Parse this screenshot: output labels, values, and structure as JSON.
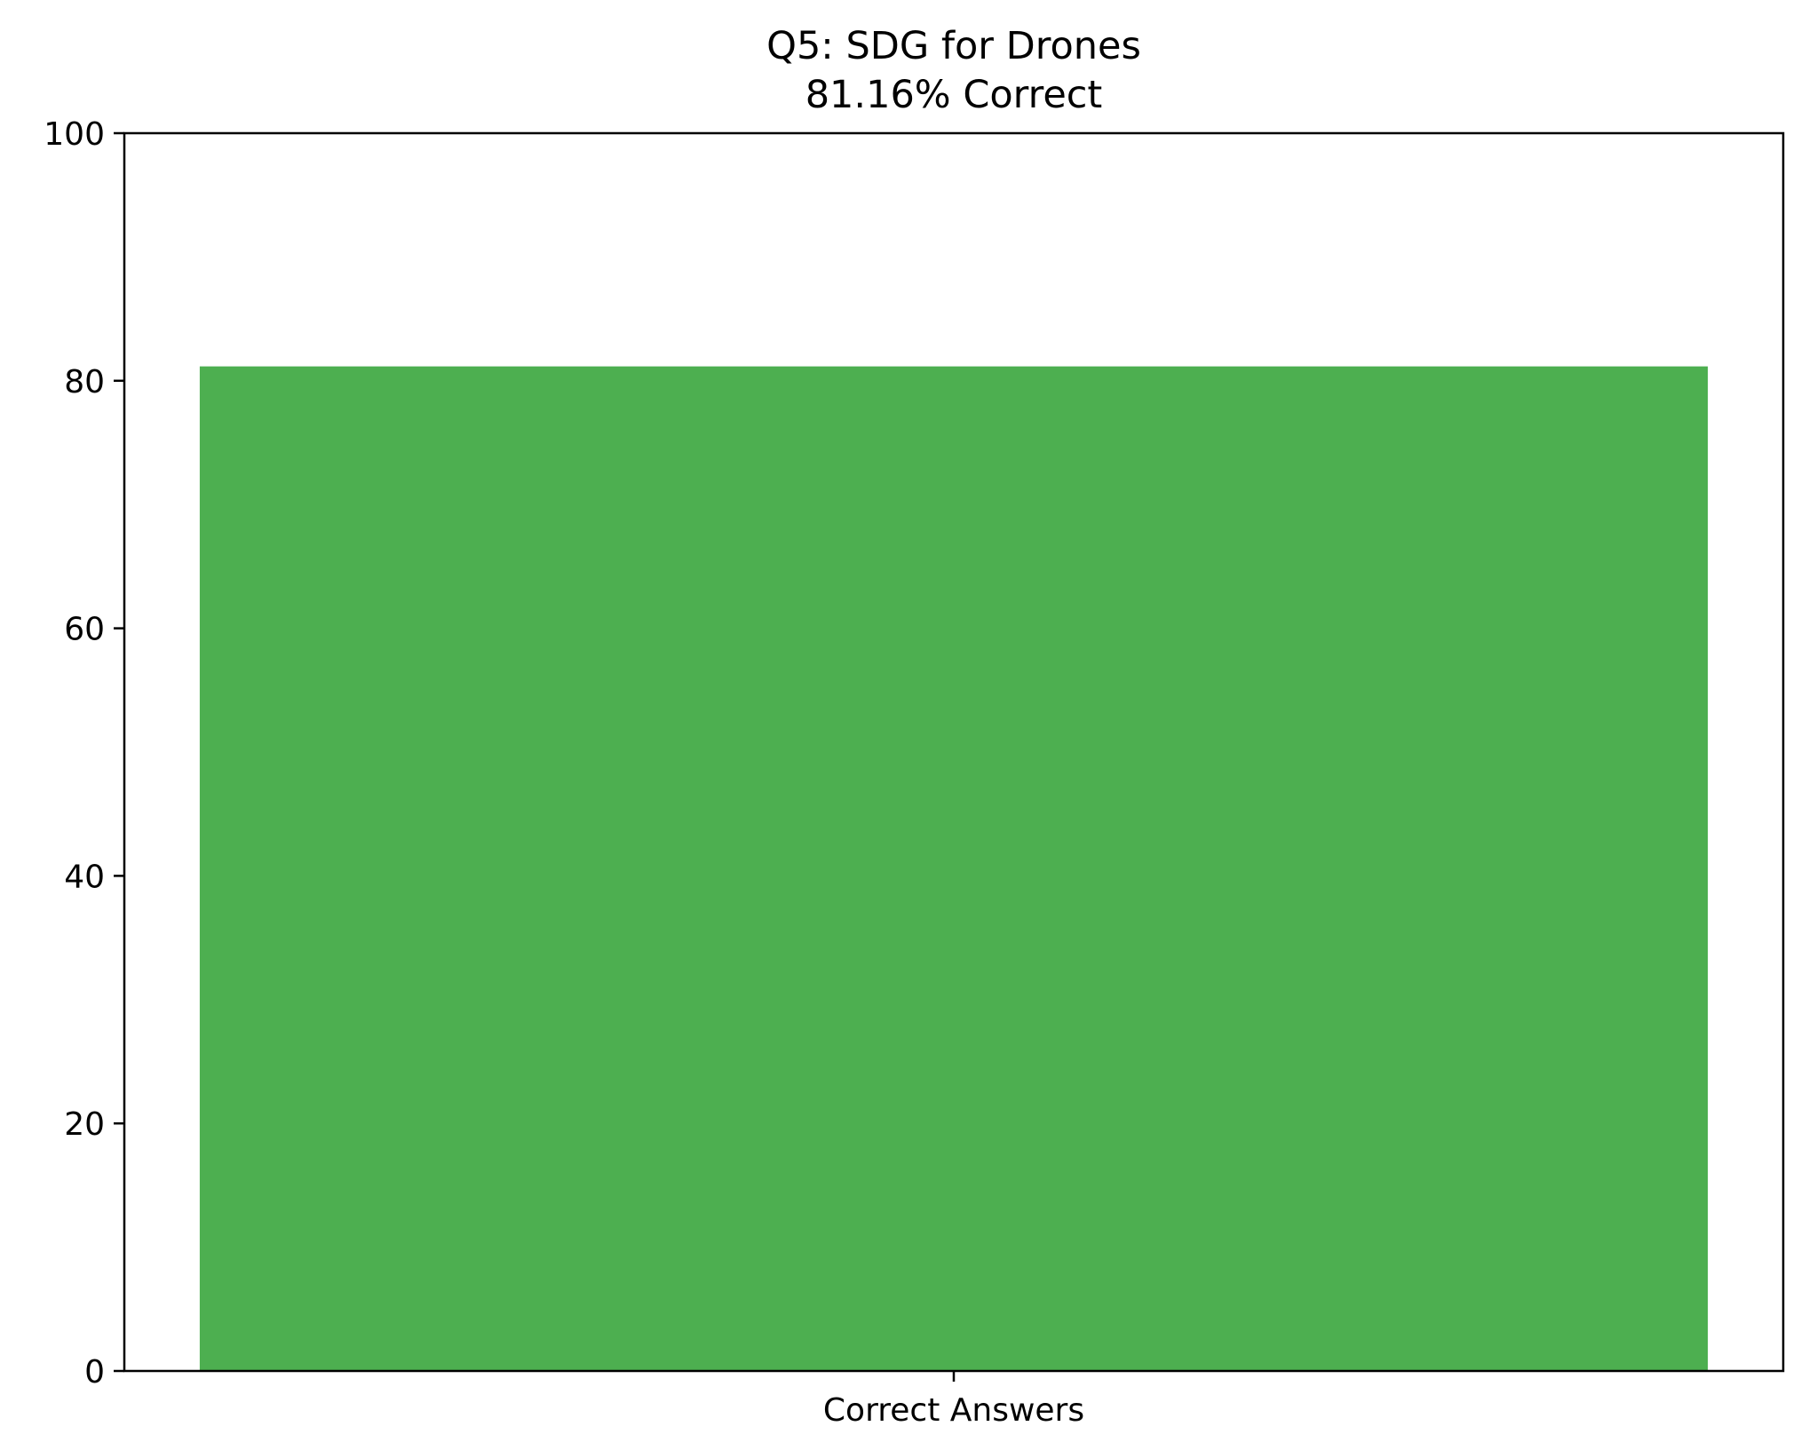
{
  "chart_data": {
    "type": "bar",
    "title": "Q5: SDG for Drones",
    "subtitle": "81.16% Correct",
    "categories": [
      "Correct Answers"
    ],
    "values": [
      81.16
    ],
    "xlabel": "",
    "ylabel": "",
    "ylim": [
      0,
      100
    ],
    "yticks": [
      0,
      20,
      40,
      60,
      80,
      100
    ],
    "grid": false,
    "legend": "none",
    "colors": {
      "bar": "#4daf50",
      "axis": "#000000",
      "text": "#000000"
    }
  }
}
